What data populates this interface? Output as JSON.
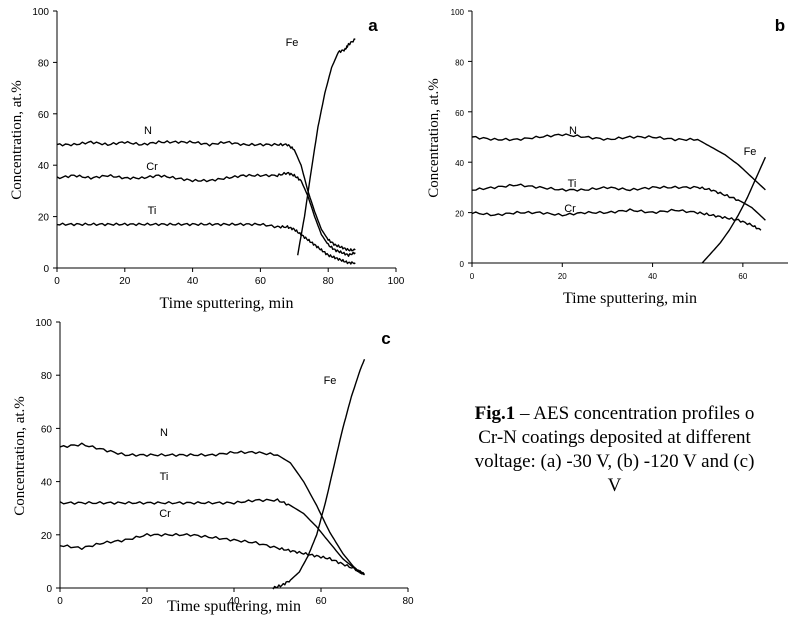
{
  "caption": {
    "fig_label": "Fig.1",
    "line1_rest": " – AES concentration profiles o",
    "line2": "Cr-N coatings deposited at different",
    "line3": "voltage: (a) -30 V, (b) -120 V and (c)",
    "line4": "V"
  },
  "chart_data": [
    {
      "type": "line",
      "panel_label": "a",
      "xlabel": "Time sputtering, min",
      "ylabel": "Concentration, at.%",
      "xlim": [
        0,
        100
      ],
      "ylim": [
        0,
        100
      ],
      "xticks": [
        0,
        20,
        40,
        60,
        80,
        100
      ],
      "yticks": [
        0,
        20,
        40,
        60,
        80,
        100
      ],
      "series": [
        {
          "name": "N",
          "x": [
            0,
            5,
            10,
            15,
            20,
            25,
            30,
            35,
            40,
            45,
            50,
            55,
            60,
            65,
            68,
            70,
            72,
            74,
            76,
            78,
            80,
            82,
            84,
            86,
            88
          ],
          "y": [
            48,
            48,
            49,
            48,
            49,
            48,
            49,
            49,
            49,
            48,
            49,
            48,
            48,
            48,
            48,
            46,
            40,
            30,
            22,
            15,
            11,
            9,
            8,
            7,
            7
          ]
        },
        {
          "name": "Cr",
          "x": [
            0,
            5,
            10,
            15,
            20,
            25,
            30,
            35,
            40,
            45,
            50,
            55,
            60,
            65,
            68,
            70,
            72,
            74,
            76,
            78,
            80,
            82,
            84,
            86,
            88
          ],
          "y": [
            35,
            36,
            35,
            36,
            35,
            35,
            36,
            35,
            34,
            34,
            35,
            36,
            36,
            36,
            37,
            36,
            34,
            28,
            20,
            13,
            9,
            7,
            6,
            5,
            6
          ]
        },
        {
          "name": "Ti",
          "x": [
            0,
            5,
            10,
            15,
            20,
            25,
            30,
            35,
            40,
            45,
            50,
            55,
            60,
            65,
            68,
            70,
            72,
            74,
            76,
            78,
            80,
            82,
            84,
            86,
            88
          ],
          "y": [
            17,
            17,
            17,
            17,
            17,
            17,
            17,
            17,
            17,
            17,
            17,
            17,
            17,
            16,
            16,
            15,
            13,
            11,
            9,
            7,
            5,
            4,
            3,
            2,
            2
          ]
        },
        {
          "name": "Fe",
          "x": [
            71,
            73,
            75,
            77,
            79,
            81,
            83,
            85,
            86,
            88
          ],
          "y": [
            5,
            20,
            38,
            55,
            68,
            78,
            84,
            85,
            87,
            89
          ]
        }
      ]
    },
    {
      "type": "line",
      "panel_label": "b",
      "xlabel": "Time sputtering, min",
      "ylabel": "Concentration, at.%",
      "xlim": [
        0,
        70
      ],
      "ylim": [
        0,
        100
      ],
      "xticks": [
        0,
        20,
        40,
        60
      ],
      "yticks": [
        0,
        20,
        40,
        60,
        80,
        100
      ],
      "series": [
        {
          "name": "N",
          "x": [
            0,
            5,
            10,
            15,
            20,
            25,
            30,
            35,
            40,
            45,
            50,
            53,
            56,
            59,
            62,
            65
          ],
          "y": [
            50,
            49,
            49,
            50,
            51,
            50,
            49,
            50,
            50,
            49,
            49,
            46,
            43,
            39,
            34,
            29
          ]
        },
        {
          "name": "Fe",
          "x": [
            51,
            53,
            55,
            57,
            59,
            61,
            63,
            65
          ],
          "y": [
            0,
            4,
            8,
            13,
            19,
            26,
            34,
            42
          ]
        },
        {
          "name": "Ti",
          "x": [
            0,
            5,
            10,
            15,
            20,
            25,
            30,
            35,
            40,
            45,
            50,
            53,
            56,
            59,
            62,
            65
          ],
          "y": [
            29,
            30,
            31,
            30,
            29,
            29,
            30,
            29,
            30,
            30,
            30,
            29,
            27,
            25,
            22,
            17
          ]
        },
        {
          "name": "Cr",
          "x": [
            0,
            5,
            10,
            15,
            20,
            25,
            30,
            35,
            40,
            45,
            50,
            53,
            56,
            59,
            62,
            64
          ],
          "y": [
            20,
            19,
            20,
            20,
            19,
            20,
            20,
            21,
            20,
            21,
            20,
            19,
            18,
            17,
            15,
            13
          ]
        }
      ]
    },
    {
      "type": "line",
      "panel_label": "c",
      "xlabel": "Time sputtering, min",
      "ylabel": "Concentration, at.%",
      "xlim": [
        0,
        80
      ],
      "ylim": [
        0,
        100
      ],
      "xticks": [
        0,
        20,
        40,
        60,
        80
      ],
      "yticks": [
        0,
        20,
        40,
        60,
        80,
        100
      ],
      "series": [
        {
          "name": "N",
          "x": [
            0,
            5,
            10,
            15,
            20,
            25,
            30,
            35,
            40,
            45,
            50,
            53,
            56,
            59,
            62,
            65,
            68,
            70
          ],
          "y": [
            53,
            54,
            52,
            50,
            50,
            50,
            50,
            50,
            51,
            51,
            50,
            47,
            40,
            31,
            21,
            13,
            7,
            5
          ]
        },
        {
          "name": "Ti",
          "x": [
            0,
            5,
            10,
            15,
            20,
            25,
            30,
            35,
            40,
            45,
            50,
            53,
            56,
            59,
            62,
            65,
            68,
            70
          ],
          "y": [
            32,
            32,
            32,
            32,
            32,
            32,
            32,
            32,
            32,
            33,
            33,
            31,
            28,
            23,
            17,
            11,
            7,
            5
          ]
        },
        {
          "name": "Cr",
          "x": [
            0,
            5,
            10,
            15,
            20,
            25,
            30,
            35,
            40,
            45,
            50,
            53,
            56,
            59,
            62,
            65,
            68,
            70
          ],
          "y": [
            16,
            15,
            17,
            18,
            20,
            20,
            20,
            19,
            18,
            17,
            15,
            14,
            13,
            12,
            11,
            9,
            7,
            5
          ]
        },
        {
          "name": "Fe",
          "x": [
            49,
            51,
            53,
            55,
            57,
            59,
            61,
            63,
            65,
            67,
            69,
            70
          ],
          "y": [
            0,
            1,
            3,
            6,
            12,
            20,
            32,
            46,
            60,
            72,
            82,
            86
          ]
        }
      ]
    }
  ]
}
